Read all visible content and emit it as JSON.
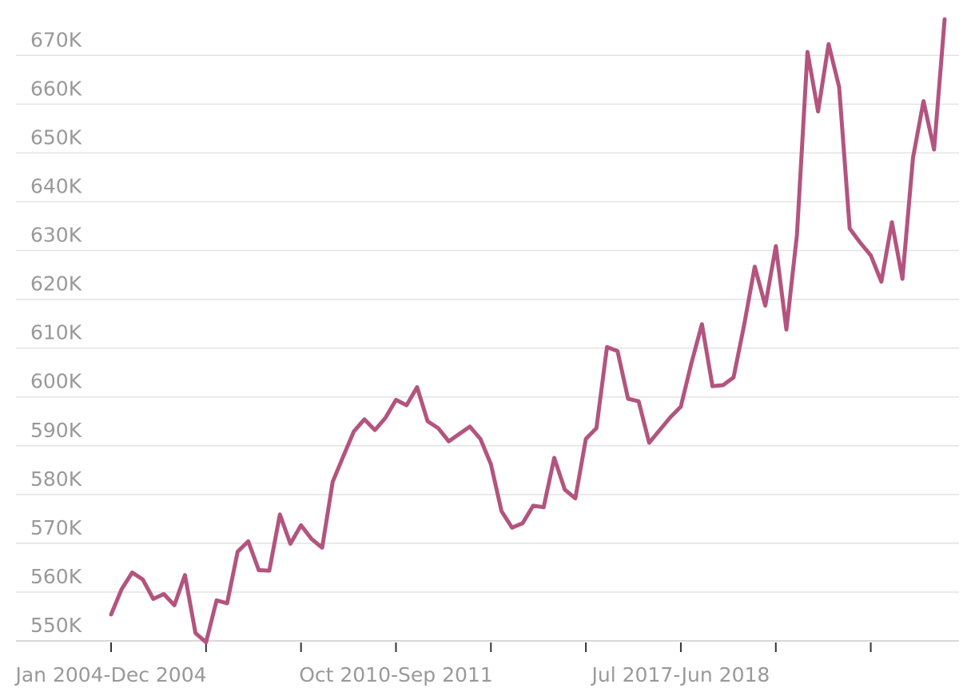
{
  "chart_data": {
    "type": "line",
    "categories": [
      "Jan 2004-Dec 2004",
      null,
      null,
      null,
      null,
      null,
      null,
      null,
      null,
      null,
      null,
      null,
      null,
      null,
      null,
      null,
      null,
      null,
      null,
      null,
      null,
      null,
      null,
      null,
      null,
      null,
      null,
      "Oct 2010-Sep 2011",
      null,
      null,
      null,
      null,
      null,
      null,
      null,
      null,
      null,
      null,
      null,
      null,
      null,
      null,
      null,
      null,
      null,
      null,
      null,
      null,
      null,
      null,
      null,
      null,
      null,
      null,
      "Jul 2017-Jun 2018",
      null,
      null,
      null,
      null,
      null,
      null,
      null,
      null,
      null,
      null,
      null,
      null,
      null,
      null,
      null,
      null,
      null,
      null,
      null,
      null,
      null,
      null,
      null,
      null,
      null
    ],
    "values": [
      555400,
      560600,
      564000,
      562600,
      558600,
      559600,
      557300,
      563500,
      551600,
      549700,
      558300,
      557700,
      568300,
      570400,
      564500,
      564400,
      575900,
      569900,
      573700,
      570900,
      569100,
      582600,
      587800,
      592900,
      595400,
      593200,
      595700,
      599400,
      598300,
      602000,
      595000,
      593600,
      590900,
      592400,
      593900,
      591400,
      586200,
      576600,
      573200,
      574100,
      577700,
      577400,
      587500,
      581000,
      579200,
      591400,
      593600,
      610200,
      609400,
      599600,
      599100,
      590600,
      593200,
      595800,
      598000,
      606900,
      614900,
      602200,
      602400,
      604000,
      614800,
      626700,
      618700,
      630900,
      613800,
      633200,
      670700,
      658500,
      672300,
      663500,
      634500,
      631600,
      629000,
      623600,
      635800,
      624200,
      649000,
      660600,
      650700,
      677400
    ],
    "color": "#b3547f",
    "ylim": [
      550000,
      678000
    ],
    "yticks": [
      {
        "value": 550000,
        "label": "550K"
      },
      {
        "value": 560000,
        "label": "560K"
      },
      {
        "value": 570000,
        "label": "570K"
      },
      {
        "value": 580000,
        "label": "580K"
      },
      {
        "value": 590000,
        "label": "590K"
      },
      {
        "value": 600000,
        "label": "600K"
      },
      {
        "value": 610000,
        "label": "610K"
      },
      {
        "value": 620000,
        "label": "620K"
      },
      {
        "value": 630000,
        "label": "630K"
      },
      {
        "value": 640000,
        "label": "640K"
      },
      {
        "value": 650000,
        "label": "650K"
      },
      {
        "value": 660000,
        "label": "660K"
      },
      {
        "value": 670000,
        "label": "670K"
      }
    ],
    "grid": true
  }
}
